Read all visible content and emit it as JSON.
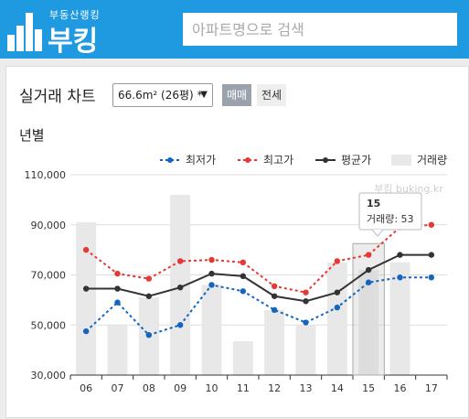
{
  "header": {
    "logo_small": "부동산랭킹",
    "logo_big": "부킹",
    "search_placeholder": "아파트명으로 검색",
    "bg_color": "#1f9ae0"
  },
  "card": {
    "title": "실거래 차트",
    "area_select": "66.6m² (26평) *",
    "tab_trade": "매매",
    "tab_rent": "전세",
    "period_label": "년별",
    "watermark": "부킹 buking.kr"
  },
  "chart_data": {
    "type": "line",
    "categories": [
      "06",
      "07",
      "08",
      "09",
      "10",
      "11",
      "12",
      "13",
      "14",
      "15",
      "16",
      "17"
    ],
    "ylim": [
      30000,
      110000
    ],
    "y_ticks": [
      "30,000",
      "50,000",
      "70,000",
      "90,000",
      "110,000"
    ],
    "series": [
      {
        "name": "최저가",
        "color": "#1565c0",
        "dash": true,
        "values": [
          47500,
          59000,
          46000,
          50000,
          66000,
          63500,
          56000,
          51000,
          57000,
          67000,
          69000,
          69000
        ]
      },
      {
        "name": "최고가",
        "color": "#e53935",
        "dash": true,
        "values": [
          80000,
          70500,
          68500,
          75500,
          76000,
          75000,
          65500,
          63000,
          75500,
          78000,
          89000,
          90000
        ]
      },
      {
        "name": "평균가",
        "color": "#333333",
        "dash": false,
        "values": [
          64500,
          64500,
          61500,
          65000,
          70500,
          69500,
          61500,
          59500,
          63000,
          72000,
          78000,
          78000
        ]
      }
    ],
    "volume": {
      "name": "거래량",
      "color": "#e8e8e8",
      "values": [
        91000,
        50000,
        61000,
        102000,
        66000,
        43500,
        56000,
        50000,
        75000,
        72000,
        75000,
        0
      ]
    },
    "tooltip": {
      "title": "15",
      "text": "거래량: 53",
      "index": 9
    }
  }
}
